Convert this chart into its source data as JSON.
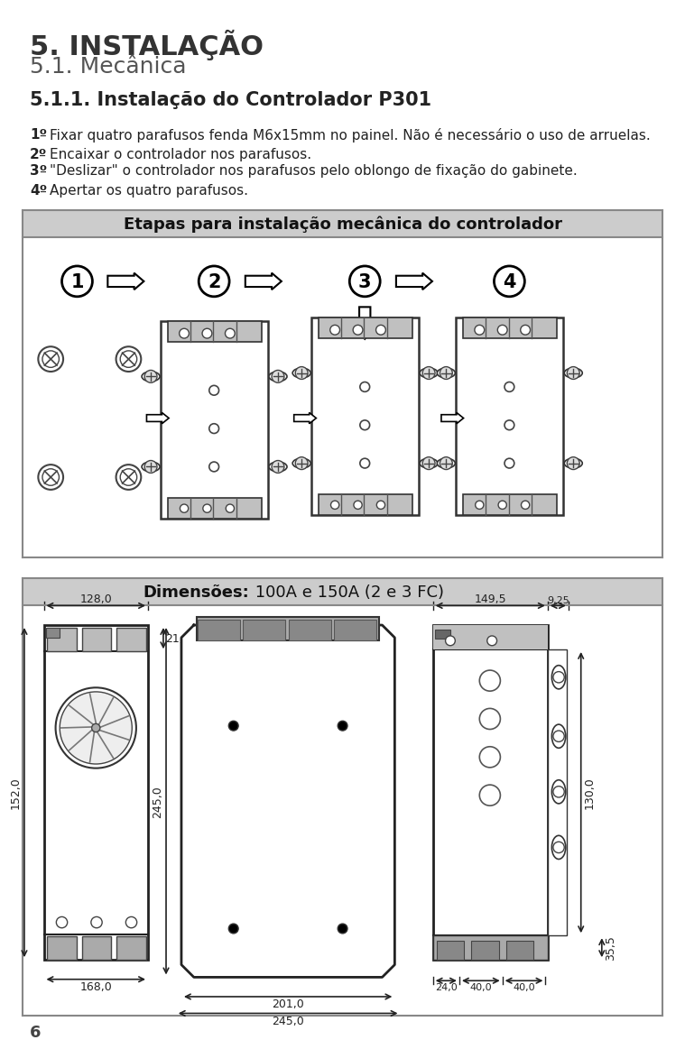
{
  "title1": "5. INSTALAÇÃO",
  "title2": "5.1. Mecânica",
  "title3": "5.1.1. Instalação do Controlador P301",
  "step1_num": "1º",
  "step1_text": "Fixar quatro parafusos fenda M6x15mm no painel. Não é necessário o uso de arruelas.",
  "step2_num": "2º",
  "step2_text": "Encaixar o controlador nos parafusos.",
  "step3_num": "3º",
  "step3_text": "\"Deslizar\" o controlador nos parafusos pelo oblongo de fixação do gabinete.",
  "step4_num": "4º",
  "step4_text": "Apertar os quatro parafusos.",
  "box1_title": "Etapas para instalação mecânica do controlador",
  "box2_title_bold": "Dimensões:",
  "box2_title_normal": " 100A e 150A (2 e 3 FC)",
  "dim_128": "128,0",
  "dim_21": "21,0",
  "dim_168": "168,0",
  "dim_245a": "245,0",
  "dim_201": "201,0",
  "dim_245b": "245,0",
  "dim_149": "149,5",
  "dim_9": "9,25",
  "dim_130": "130,0",
  "dim_24": "24,0",
  "dim_40a": "40,0",
  "dim_40b": "40,0",
  "dim_35": "35,5",
  "dim_152": "152,0",
  "page_num": "6",
  "bg_color": "#ffffff",
  "box_header_color": "#cccccc",
  "box_border_color": "#888888",
  "text_color": "#222222",
  "line_color": "#333333"
}
